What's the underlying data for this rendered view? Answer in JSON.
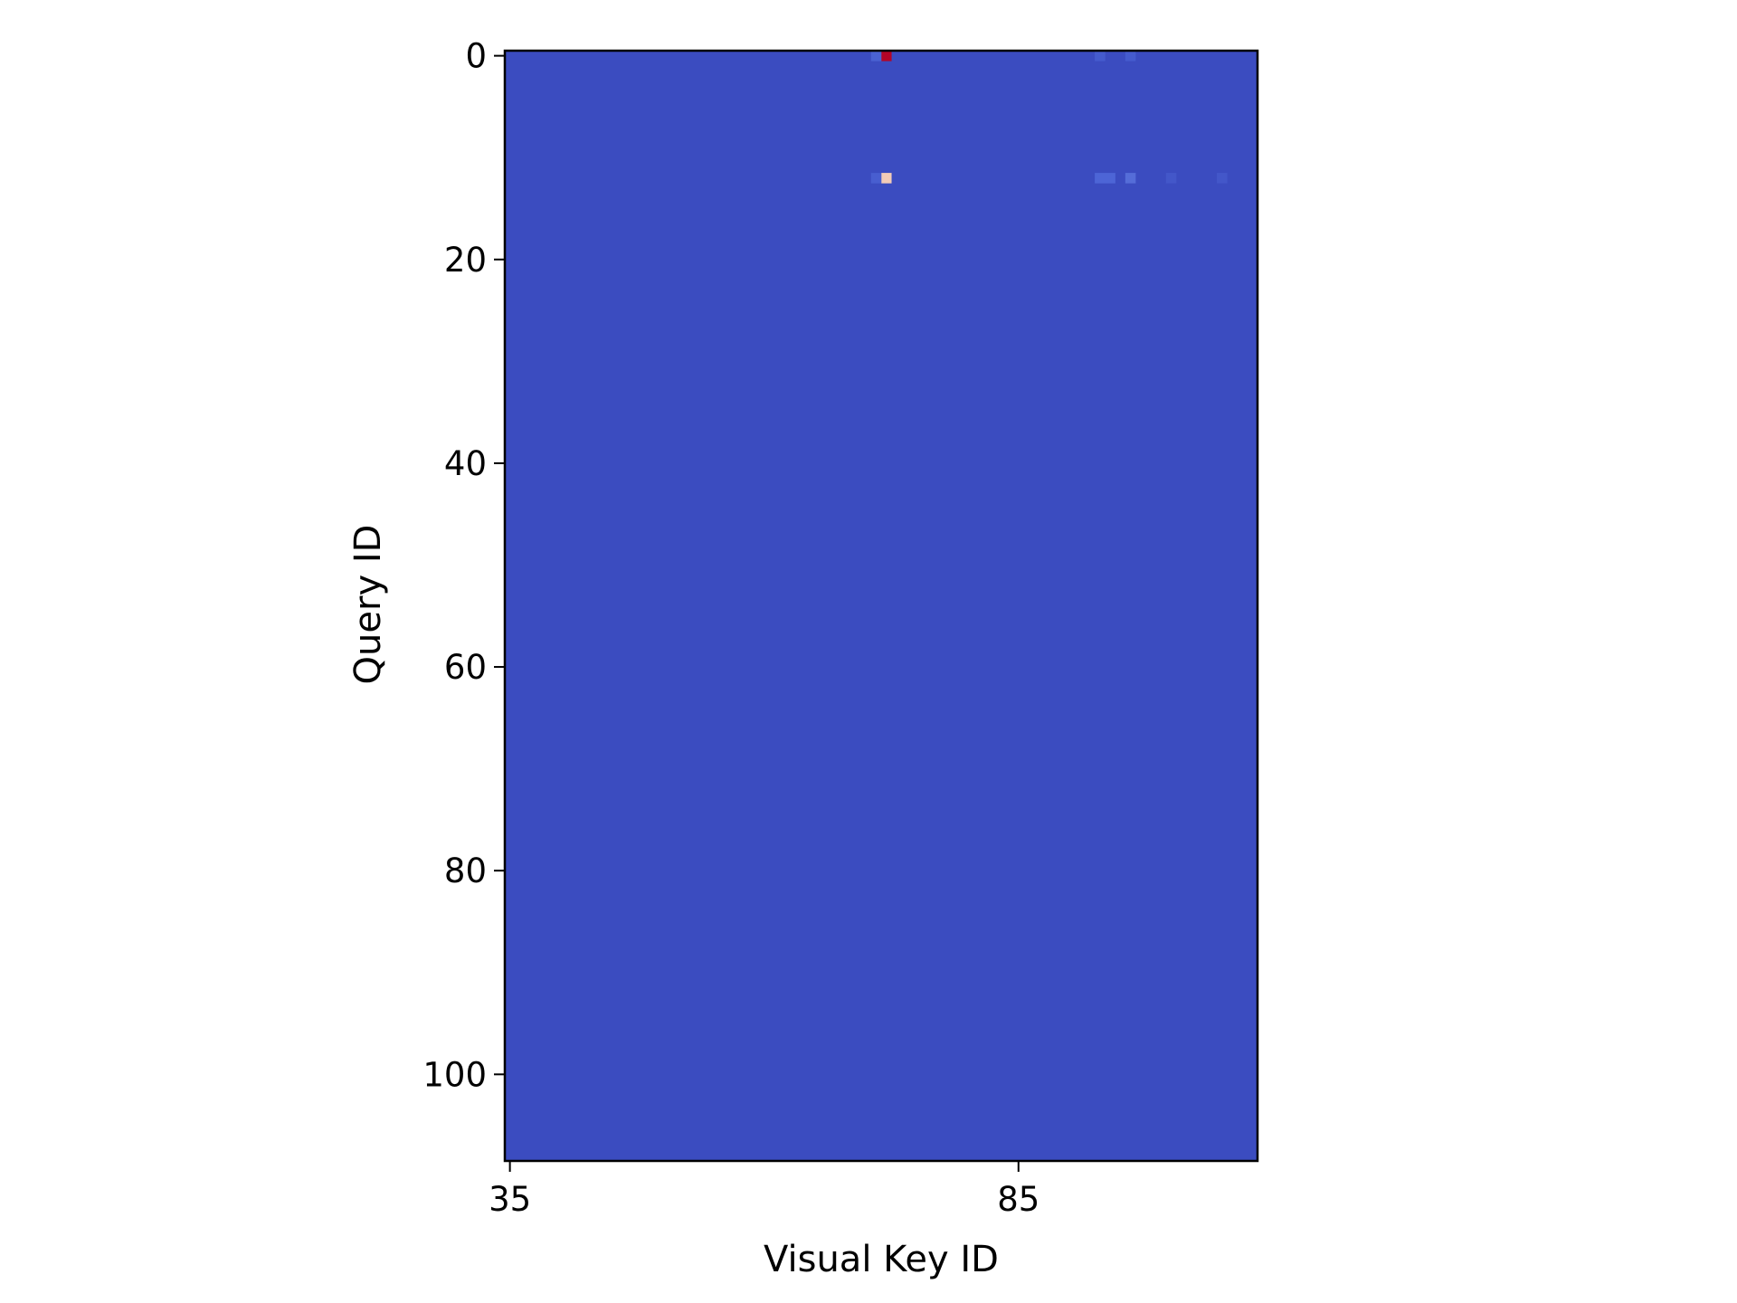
{
  "chart_data": {
    "type": "heatmap",
    "title": "",
    "xlabel": "Visual Key ID",
    "ylabel": "Query ID",
    "x_range": [
      35,
      108
    ],
    "y_range": [
      0,
      108
    ],
    "x_ticks": [
      35,
      85
    ],
    "y_ticks": [
      0,
      20,
      40,
      60,
      80,
      100
    ],
    "y_inverted": true,
    "colormap": "coolwarm",
    "background_value": 0.0,
    "colors": {
      "low": "#3b4cc0",
      "mid_low": "#4f69d9",
      "mid_high": "#f2cbb7",
      "high": "#b40426"
    },
    "cells": [
      {
        "x": 72,
        "y": 0,
        "value": 1.0
      },
      {
        "x": 71,
        "y": 0,
        "value": 0.06
      },
      {
        "x": 93,
        "y": 0,
        "value": 0.04
      },
      {
        "x": 96,
        "y": 0,
        "value": 0.04
      },
      {
        "x": 72,
        "y": 12,
        "value": 0.6
      },
      {
        "x": 71,
        "y": 12,
        "value": 0.05
      },
      {
        "x": 93,
        "y": 12,
        "value": 0.07
      },
      {
        "x": 94,
        "y": 12,
        "value": 0.07
      },
      {
        "x": 96,
        "y": 12,
        "value": 0.1
      },
      {
        "x": 100,
        "y": 12,
        "value": 0.03
      },
      {
        "x": 105,
        "y": 12,
        "value": 0.03
      }
    ]
  }
}
